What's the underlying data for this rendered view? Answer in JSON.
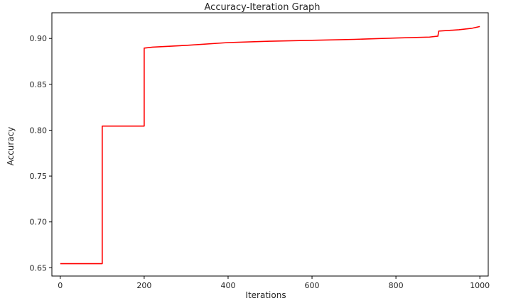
{
  "chart_data": {
    "type": "line",
    "title": "Accuracy-Iteration Graph",
    "xlabel": "Iterations",
    "ylabel": "Accuracy",
    "xlim": [
      -20,
      1020
    ],
    "ylim": [
      0.641,
      0.928
    ],
    "x_ticks": [
      0,
      200,
      400,
      600,
      800,
      1000
    ],
    "y_ticks": [
      0.65,
      0.7,
      0.75,
      0.8,
      0.85,
      0.9
    ],
    "x_tick_labels": [
      "0",
      "200",
      "400",
      "600",
      "800",
      "1000"
    ],
    "y_tick_labels": [
      "0.65",
      "0.70",
      "0.75",
      "0.80",
      "0.85",
      "0.90"
    ],
    "grid": false,
    "series": [
      {
        "color": "#ff0000",
        "x": [
          0,
          100,
          100,
          200,
          200,
          220,
          300,
          400,
          500,
          600,
          700,
          800,
          880,
          900,
          902,
          950,
          980,
          1000
        ],
        "y": [
          0.6545,
          0.6545,
          0.8045,
          0.8045,
          0.8895,
          0.8905,
          0.8925,
          0.8955,
          0.897,
          0.898,
          0.899,
          0.9005,
          0.9015,
          0.9025,
          0.908,
          0.9095,
          0.911,
          0.913
        ]
      }
    ]
  }
}
